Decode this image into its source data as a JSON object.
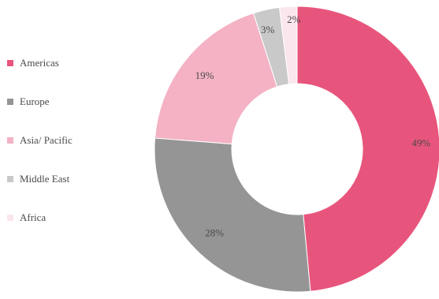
{
  "chart_data": {
    "type": "pie",
    "style": "donut",
    "legend_position": "left",
    "categories": [
      "Americas",
      "Europe",
      "Asia/ Pacific",
      "Middle East",
      "Africa"
    ],
    "values": [
      49,
      28,
      19,
      3,
      2
    ],
    "value_labels": [
      "49%",
      "28%",
      "19%",
      "3%",
      "2%"
    ],
    "colors": [
      "#e8557c",
      "#959595",
      "#f4b2c4",
      "#c9c9c9",
      "#fbe6ed"
    ]
  }
}
